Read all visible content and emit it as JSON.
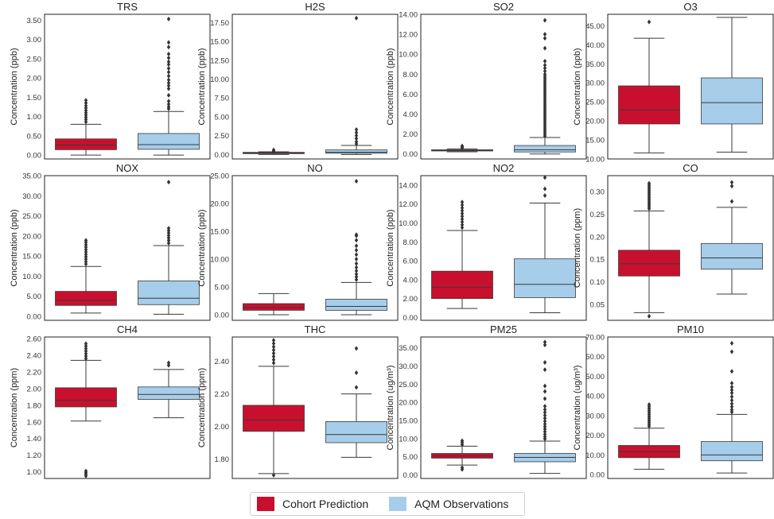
{
  "legend": {
    "series": [
      {
        "name": "Cohort Prediction",
        "color": "#c8102e"
      },
      {
        "name": "AQM Observations",
        "color": "#a6cdea"
      }
    ]
  },
  "chart_data": [
    {
      "type": "box",
      "title": "TRS",
      "ylabel": "Concentration (ppb)",
      "ylim": [
        -0.1,
        3.65
      ],
      "ticks": [
        "0.00",
        "0.50",
        "1.00",
        "1.50",
        "2.00",
        "2.50",
        "3.00",
        "3.50"
      ],
      "series": [
        {
          "name": "Cohort Prediction",
          "q1": 0.14,
          "median": 0.26,
          "q3": 0.42,
          "whisker_low": 0.0,
          "whisker_high": 0.8,
          "outliers": [
            0.86,
            0.92,
            0.98,
            1.04,
            1.1,
            1.16,
            1.22,
            1.28,
            1.35,
            1.42
          ]
        },
        {
          "name": "AQM Observations",
          "q1": 0.15,
          "median": 0.27,
          "q3": 0.56,
          "whisker_low": 0.0,
          "whisker_high": 1.13,
          "outliers": [
            1.2,
            1.25,
            1.32,
            1.4,
            1.55,
            1.72,
            1.8,
            1.87,
            1.95,
            2.05,
            2.15,
            2.25,
            2.35,
            2.42,
            2.52,
            2.62,
            2.8,
            2.92,
            3.53
          ]
        }
      ]
    },
    {
      "type": "box",
      "title": "H2S",
      "ylabel": "Concentration (ppb)",
      "ylim": [
        -0.6,
        18.6
      ],
      "ticks": [
        "0.00",
        "2.50",
        "5.00",
        "7.50",
        "10.00",
        "12.50",
        "15.00",
        "17.50"
      ],
      "series": [
        {
          "name": "Cohort Prediction",
          "q1": 0.1,
          "median": 0.2,
          "q3": 0.28,
          "whisker_low": 0.0,
          "whisker_high": 0.35,
          "outliers": [
            0.45,
            0.6
          ]
        },
        {
          "name": "AQM Observations",
          "q1": 0.15,
          "median": 0.3,
          "q3": 0.6,
          "whisker_low": 0.0,
          "whisker_high": 1.2,
          "outliers": [
            1.4,
            1.7,
            2.1,
            2.5,
            2.9,
            3.3,
            18.1
          ]
        }
      ]
    },
    {
      "type": "box",
      "title": "SO2",
      "ylabel": "Concentration (ppb)",
      "ylim": [
        -0.5,
        14.0
      ],
      "ticks": [
        "0.00",
        "2.00",
        "4.00",
        "6.00",
        "8.00",
        "10.00",
        "12.00",
        "14.00"
      ],
      "series": [
        {
          "name": "Cohort Prediction",
          "q1": 0.3,
          "median": 0.35,
          "q3": 0.42,
          "whisker_low": 0.22,
          "whisker_high": 0.52,
          "outliers": [
            0.6,
            0.7,
            0.8
          ]
        },
        {
          "name": "AQM Observations",
          "q1": 0.2,
          "median": 0.42,
          "q3": 0.85,
          "whisker_low": 0.0,
          "whisker_high": 1.65,
          "outliers": [
            1.8,
            2.0,
            2.2,
            2.4,
            2.6,
            2.8,
            3.0,
            3.2,
            3.4,
            3.6,
            3.8,
            4.0,
            4.2,
            4.4,
            4.6,
            4.8,
            5.0,
            5.2,
            5.4,
            5.6,
            5.8,
            6.0,
            6.2,
            6.4,
            6.6,
            6.8,
            7.0,
            7.2,
            7.4,
            7.6,
            7.8,
            8.0,
            8.3,
            8.6,
            8.9,
            9.3,
            10.6,
            11.6,
            12.0,
            13.4
          ]
        }
      ]
    },
    {
      "type": "box",
      "title": "O3",
      "ylabel": "Concentration (ppb)",
      "ylim": [
        10.0,
        48.0
      ],
      "ticks": [
        "10.00",
        "15.00",
        "20.00",
        "25.00",
        "30.00",
        "35.00",
        "40.00",
        "45.00"
      ],
      "series": [
        {
          "name": "Cohort Prediction",
          "q1": 19.2,
          "median": 22.9,
          "q3": 29.2,
          "whisker_low": 11.6,
          "whisker_high": 41.7,
          "outliers": [
            46.0
          ]
        },
        {
          "name": "AQM Observations",
          "q1": 19.2,
          "median": 24.8,
          "q3": 31.3,
          "whisker_low": 11.8,
          "whisker_high": 47.2,
          "outliers": []
        }
      ]
    },
    {
      "type": "box",
      "title": "NOX",
      "ylabel": "Concentration (ppb)",
      "ylim": [
        -1.0,
        35.0
      ],
      "ticks": [
        "0.00",
        "5.00",
        "10.00",
        "15.00",
        "20.00",
        "25.00",
        "30.00",
        "35.00"
      ],
      "series": [
        {
          "name": "Cohort Prediction",
          "q1": 2.7,
          "median": 4.0,
          "q3": 6.2,
          "whisker_low": 0.8,
          "whisker_high": 12.4,
          "outliers": [
            13.0,
            13.6,
            14.2,
            14.8,
            15.4,
            16.0,
            16.6,
            17.2,
            17.8,
            18.4,
            18.9
          ]
        },
        {
          "name": "AQM Observations",
          "q1": 2.9,
          "median": 4.5,
          "q3": 8.8,
          "whisker_low": 0.5,
          "whisker_high": 17.6,
          "outliers": [
            18.2,
            18.9,
            19.5,
            20.1,
            20.7,
            21.3,
            21.9,
            33.4
          ]
        }
      ]
    },
    {
      "type": "box",
      "title": "NO",
      "ylabel": "Concentration (ppb)",
      "ylim": [
        -1.0,
        25.0
      ],
      "ticks": [
        "0.00",
        "5.00",
        "10.00",
        "15.00",
        "20.00",
        "25.00"
      ],
      "series": [
        {
          "name": "Cohort Prediction",
          "q1": 0.8,
          "median": 1.3,
          "q3": 2.0,
          "whisker_low": 0.0,
          "whisker_high": 3.8,
          "outliers": []
        },
        {
          "name": "AQM Observations",
          "q1": 0.8,
          "median": 1.5,
          "q3": 2.8,
          "whisker_low": 0.0,
          "whisker_high": 5.8,
          "outliers": [
            6.3,
            6.8,
            7.3,
            7.9,
            8.5,
            9.2,
            10.0,
            10.8,
            11.6,
            12.4,
            13.4,
            14.2,
            14.4,
            24.0
          ]
        }
      ]
    },
    {
      "type": "box",
      "title": "NO2",
      "ylabel": "Concentration (ppb)",
      "ylim": [
        -0.3,
        15.0
      ],
      "ticks": [
        "0.00",
        "2.00",
        "4.00",
        "6.00",
        "8.00",
        "10.00",
        "12.00",
        "14.00"
      ],
      "series": [
        {
          "name": "Cohort Prediction",
          "q1": 2.0,
          "median": 3.2,
          "q3": 4.9,
          "whisker_low": 0.95,
          "whisker_high": 9.2,
          "outliers": [
            9.5,
            9.8,
            10.1,
            10.4,
            10.7,
            11.0,
            11.3,
            11.6,
            11.9,
            12.2
          ]
        },
        {
          "name": "AQM Observations",
          "q1": 2.1,
          "median": 3.5,
          "q3": 6.2,
          "whisker_low": 0.5,
          "whisker_high": 12.1,
          "outliers": [
            12.9,
            13.6,
            14.8
          ]
        }
      ]
    },
    {
      "type": "box",
      "title": "CO",
      "ylabel": "Concentration (ppm)",
      "ylim": [
        0.015,
        0.335
      ],
      "ticks": [
        "0.05",
        "0.10",
        "0.15",
        "0.20",
        "0.25",
        "0.30"
      ],
      "series": [
        {
          "name": "Cohort Prediction",
          "q1": 0.113,
          "median": 0.14,
          "q3": 0.17,
          "whisker_low": 0.032,
          "whisker_high": 0.257,
          "outliers": [
            0.024,
            0.262,
            0.266,
            0.27,
            0.274,
            0.278,
            0.282,
            0.286,
            0.29,
            0.294,
            0.298,
            0.302,
            0.306,
            0.31,
            0.314,
            0.318
          ]
        },
        {
          "name": "AQM Observations",
          "q1": 0.128,
          "median": 0.153,
          "q3": 0.185,
          "whisker_low": 0.073,
          "whisker_high": 0.265,
          "outliers": [
            0.278,
            0.312,
            0.32
          ]
        }
      ]
    },
    {
      "type": "box",
      "title": "CH4",
      "ylabel": "Concentration (ppm)",
      "ylim": [
        0.92,
        2.62
      ],
      "ticks": [
        "1.00",
        "1.20",
        "1.40",
        "1.60",
        "1.80",
        "2.00",
        "2.20",
        "2.40",
        "2.60"
      ],
      "series": [
        {
          "name": "Cohort Prediction",
          "q1": 1.78,
          "median": 1.86,
          "q3": 2.01,
          "whisker_low": 1.61,
          "whisker_high": 2.34,
          "outliers": [
            0.95,
            0.97,
            0.99,
            1.01,
            2.36,
            2.39,
            2.42,
            2.45,
            2.48,
            2.51,
            2.54
          ]
        },
        {
          "name": "AQM Observations",
          "q1": 1.87,
          "median": 1.93,
          "q3": 2.02,
          "whisker_low": 1.65,
          "whisker_high": 2.23,
          "outliers": [
            2.28,
            2.31
          ]
        }
      ]
    },
    {
      "type": "box",
      "title": "THC",
      "ylabel": "Concentration (ppm)",
      "ylim": [
        1.68,
        2.55
      ],
      "ticks": [
        "1.80",
        "2.00",
        "2.20",
        "2.40"
      ],
      "series": [
        {
          "name": "Cohort Prediction",
          "q1": 1.97,
          "median": 2.04,
          "q3": 2.13,
          "whisker_low": 1.71,
          "whisker_high": 2.37,
          "outliers": [
            1.7,
            2.39,
            2.41,
            2.43,
            2.45,
            2.47,
            2.49,
            2.51,
            2.53
          ]
        },
        {
          "name": "AQM Observations",
          "q1": 1.9,
          "median": 1.95,
          "q3": 2.03,
          "whisker_low": 1.81,
          "whisker_high": 2.2,
          "outliers": [
            2.24,
            2.33,
            2.48
          ]
        }
      ]
    },
    {
      "type": "box",
      "title": "PM25",
      "ylabel": "Concentration (ug/m³)",
      "ylim": [
        -1.0,
        38.0
      ],
      "ticks": [
        "0.00",
        "5.00",
        "10.00",
        "15.00",
        "20.00",
        "25.00",
        "30.00",
        "35.00"
      ],
      "series": [
        {
          "name": "Cohort Prediction",
          "q1": 4.6,
          "median": 5.2,
          "q3": 5.9,
          "whisker_low": 2.7,
          "whisker_high": 7.9,
          "outliers": [
            1.5,
            2.0,
            8.3,
            8.9,
            9.4
          ]
        },
        {
          "name": "AQM Observations",
          "q1": 3.6,
          "median": 4.8,
          "q3": 5.9,
          "whisker_low": 0.4,
          "whisker_high": 9.3,
          "outliers": [
            9.9,
            10.5,
            11.2,
            11.9,
            12.6,
            13.3,
            14.0,
            14.8,
            15.6,
            16.4,
            17.2,
            18.0,
            18.9,
            21.0,
            23.0,
            24.5,
            29.0,
            31.0,
            35.8,
            36.6
          ]
        }
      ]
    },
    {
      "type": "box",
      "title": "PM10",
      "ylabel": "Concentration (ug/m³)",
      "ylim": [
        -2.0,
        70.0
      ],
      "ticks": [
        "0.00",
        "10.00",
        "20.00",
        "30.00",
        "40.00",
        "50.00",
        "60.00",
        "70.00"
      ],
      "series": [
        {
          "name": "Cohort Prediction",
          "q1": 8.6,
          "median": 11.6,
          "q3": 14.8,
          "whisker_low": 2.7,
          "whisker_high": 23.6,
          "outliers": [
            24.6,
            25.6,
            26.6,
            27.6,
            28.6,
            29.6,
            30.6,
            31.6,
            32.6,
            33.6,
            34.6,
            35.6
          ]
        },
        {
          "name": "AQM Observations",
          "q1": 7.0,
          "median": 10.0,
          "q3": 16.8,
          "whisker_low": 0.8,
          "whisker_high": 30.6,
          "outliers": [
            31.8,
            33.0,
            34.5,
            36.0,
            37.8,
            39.6,
            41.5,
            43.0,
            44.5,
            46.5,
            52.5,
            62.5,
            66.8
          ]
        }
      ]
    }
  ]
}
